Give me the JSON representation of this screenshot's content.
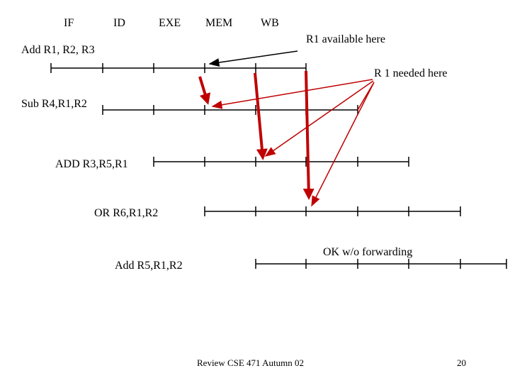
{
  "stages": [
    "IF",
    "ID",
    "EXE",
    "MEM",
    "WB"
  ],
  "instructions": [
    "Add R1, R2, R3",
    "Sub R4,R1,R2",
    "ADD R3,R5,R1",
    "OR R6,R1,R2",
    "Add R5,R1,R2"
  ],
  "annotations": {
    "available": "R1 available here",
    "needed": "R 1 needed here",
    "ok": "OK w/o forwarding"
  },
  "footer": {
    "text": "Review CSE 471 Autumn 02",
    "page": "20"
  }
}
